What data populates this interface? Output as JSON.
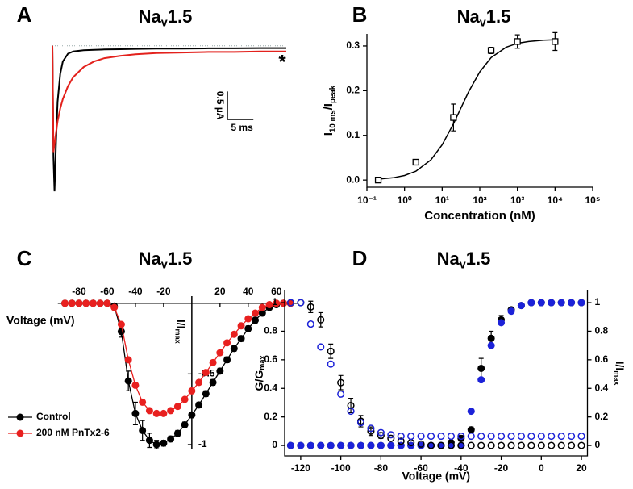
{
  "chart_data": [
    {
      "type": "line",
      "panel_label": "A",
      "title": [
        "Na",
        "v",
        "1.5"
      ],
      "x": [
        0,
        0.2,
        0.4,
        0.7,
        1,
        1.5,
        2,
        3,
        4,
        6,
        8,
        10,
        13,
        16,
        20,
        25,
        30,
        35,
        40,
        45
      ],
      "series": [
        {
          "color": "#000000",
          "values": [
            0,
            -2.0,
            -2.6,
            -1.7,
            -1.0,
            -0.5,
            -0.28,
            -0.14,
            -0.1,
            -0.08,
            -0.07,
            -0.065,
            -0.06,
            -0.055,
            -0.05,
            -0.05,
            -0.045,
            -0.045,
            -0.04,
            -0.04
          ]
        },
        {
          "color": "#e3211c",
          "values": [
            0,
            -1.9,
            -1.75,
            -1.55,
            -1.35,
            -1.12,
            -0.95,
            -0.72,
            -0.56,
            -0.38,
            -0.28,
            -0.22,
            -0.18,
            -0.15,
            -0.13,
            -0.12,
            -0.11,
            -0.11,
            -0.1,
            -0.1
          ]
        }
      ],
      "xlim": [
        0,
        45
      ],
      "ylim": [
        -2.7,
        0.3
      ],
      "scale_bar": {
        "x": {
          "value": 5,
          "label": "5 ms"
        },
        "y": {
          "value": 0.5,
          "label": "0.5 µA"
        }
      },
      "annotation": "*"
    },
    {
      "type": "scatter",
      "panel_label": "B",
      "title": [
        "Na",
        "v",
        "1.5"
      ],
      "y_label": [
        "I",
        "10 ms",
        "/I",
        "peak"
      ],
      "x_label": "Concentration (nM)",
      "x": [
        0.2,
        2,
        20,
        200,
        1000,
        10000
      ],
      "values": [
        0,
        0.04,
        0.14,
        0.29,
        0.31,
        0.31
      ],
      "errors": [
        0.005,
        0.006,
        0.03,
        0.007,
        0.015,
        0.02
      ],
      "color": "#000000",
      "marker": "open-square",
      "fit": {
        "x": [
          0.2,
          0.5,
          1,
          2,
          5,
          10,
          20,
          50,
          100,
          200,
          500,
          1000,
          2000,
          5000,
          10000
        ],
        "values": [
          0.0021,
          0.0052,
          0.0102,
          0.0197,
          0.045,
          0.0788,
          0.126,
          0.197,
          0.242,
          0.274,
          0.297,
          0.306,
          0.31,
          0.313,
          0.314
        ]
      },
      "log_x": true,
      "xlim": [
        0.1,
        100000
      ],
      "xticks": [
        {
          "value": 0.1,
          "label": "10⁻¹"
        },
        {
          "value": 1,
          "label": "10⁰"
        },
        {
          "value": 10,
          "label": "10¹"
        },
        {
          "value": 100,
          "label": "10²"
        },
        {
          "value": 1000,
          "label": "10³"
        },
        {
          "value": 10000,
          "label": "10⁴"
        },
        {
          "value": 100000,
          "label": "10⁵"
        }
      ],
      "ylim": [
        -0.016,
        0.327
      ],
      "yticks": [
        {
          "value": 0,
          "label": "0.0"
        },
        0.1,
        0.2,
        0.3
      ]
    },
    {
      "type": "line",
      "markers": true,
      "panel_label": "C",
      "title": [
        "Na",
        "v",
        "1.5"
      ],
      "x_label": "Voltage (mV)",
      "y_label": [
        "I/I",
        "max"
      ],
      "x": [
        -90,
        -85,
        -80,
        -75,
        -70,
        -65,
        -60,
        -55,
        -50,
        -45,
        -40,
        -35,
        -30,
        -25,
        -20,
        -15,
        -10,
        -5,
        0,
        5,
        10,
        15,
        20,
        25,
        30,
        35,
        40,
        45,
        50,
        55,
        60,
        65,
        70
      ],
      "series": [
        {
          "name": "Control",
          "color": "#000000",
          "values": [
            0,
            0,
            0,
            0,
            0,
            0,
            0,
            -0.02,
            -0.2,
            -0.55,
            -0.78,
            -0.9,
            -0.97,
            -1.0,
            -0.99,
            -0.96,
            -0.92,
            -0.86,
            -0.79,
            -0.72,
            -0.64,
            -0.56,
            -0.48,
            -0.4,
            -0.32,
            -0.25,
            -0.18,
            -0.12,
            -0.07,
            -0.03,
            -0.01,
            0,
            0
          ],
          "errors": [
            0,
            0,
            0,
            0,
            0,
            0,
            0,
            0.01,
            0.04,
            0.07,
            0.08,
            0.07,
            0.05,
            0.03,
            0.02,
            0.02,
            0.02,
            0.02,
            0.02,
            0.02,
            0.02,
            0.02,
            0.02,
            0.02,
            0.02,
            0.02,
            0.02,
            0.02,
            0.01,
            0.01,
            0,
            0,
            0
          ]
        },
        {
          "name": "200 nM PnTx2-6",
          "color": "#e8201f",
          "values": [
            0,
            0,
            0,
            0,
            0,
            0,
            0,
            -0.03,
            -0.15,
            -0.4,
            -0.58,
            -0.7,
            -0.76,
            -0.78,
            -0.78,
            -0.76,
            -0.73,
            -0.68,
            -0.62,
            -0.56,
            -0.49,
            -0.42,
            -0.35,
            -0.28,
            -0.22,
            -0.16,
            -0.11,
            -0.07,
            -0.03,
            -0.01,
            0,
            0,
            0
          ]
        }
      ],
      "xlim": [
        -95,
        75
      ],
      "ylim": [
        -1.1,
        0.05
      ],
      "xticks": [
        -80,
        -60,
        -40,
        -20,
        20,
        40,
        60
      ],
      "yticks": [
        -1,
        -0.5
      ],
      "legend": "lower-left"
    },
    {
      "type": "scatter",
      "panel_label": "D",
      "title": [
        "Na",
        "v",
        "1.5"
      ],
      "x_label": "Voltage (mV)",
      "y_label": [
        "G/G",
        "max"
      ],
      "y2_label": [
        "I/I",
        "max"
      ],
      "x": [
        -125,
        -120,
        -115,
        -110,
        -105,
        -100,
        -95,
        -90,
        -85,
        -80,
        -75,
        -70,
        -65,
        -60,
        -55,
        -50,
        -45,
        -40,
        -35,
        -30,
        -25,
        -20,
        -15,
        -10,
        -5,
        0,
        5,
        10,
        15,
        20
      ],
      "series": [
        {
          "color": "#000000",
          "marker": "filled",
          "values": [
            0,
            0,
            0,
            0,
            0,
            0,
            0,
            0,
            0,
            0,
            0,
            0,
            0,
            0,
            0,
            0,
            0.02,
            0.05,
            0.11,
            0.54,
            0.75,
            0.88,
            0.95,
            0.98,
            1,
            1,
            1,
            1,
            1,
            1
          ],
          "errors": [
            0,
            0,
            0,
            0,
            0,
            0,
            0,
            0,
            0,
            0,
            0,
            0,
            0,
            0,
            0,
            0,
            0,
            0.02,
            0.02,
            0.07,
            0.05,
            0.03,
            0,
            0,
            0,
            0,
            0,
            0,
            0,
            0
          ]
        },
        {
          "color": "#1c22d8",
          "marker": "filled",
          "values": [
            0,
            0,
            0,
            0,
            0,
            0,
            0,
            0,
            0,
            0,
            0,
            0,
            0,
            0,
            0,
            0,
            0,
            0,
            0.24,
            0.46,
            0.7,
            0.86,
            0.94,
            0.98,
            1,
            1,
            1,
            1,
            1,
            1
          ]
        },
        {
          "color": "#000000",
          "marker": "open",
          "axis": "y2",
          "values": [
            1,
            1,
            0.97,
            0.88,
            0.66,
            0.44,
            0.28,
            0.17,
            0.1,
            0.07,
            0.05,
            0.03,
            0.02,
            0.01,
            0,
            0,
            0,
            0,
            0,
            0,
            0,
            0,
            0,
            0,
            0,
            0,
            0,
            0,
            0,
            0
          ],
          "errors": [
            0,
            0,
            0.04,
            0.05,
            0.05,
            0.05,
            0.05,
            0.04,
            0.03,
            0.02,
            0,
            0,
            0,
            0,
            0,
            0,
            0,
            0,
            0,
            0,
            0,
            0,
            0,
            0,
            0,
            0,
            0,
            0,
            0,
            0
          ]
        },
        {
          "color": "#1c22d8",
          "marker": "open",
          "axis": "y2",
          "values": [
            1,
            1,
            0.85,
            0.69,
            0.57,
            0.36,
            0.24,
            0.16,
            0.12,
            0.09,
            0.075,
            0.065,
            0.065,
            0.065,
            0.065,
            0.065,
            0.065,
            0.065,
            0.065,
            0.065,
            0.065,
            0.065,
            0.065,
            0.065,
            0.065,
            0.065,
            0.065,
            0.065,
            0.065,
            0.065
          ]
        }
      ],
      "xlim": [
        -128,
        23
      ],
      "ylim": [
        -0.073,
        1.085
      ],
      "y2lim": [
        -0.073,
        1.085
      ],
      "xticks": [
        -120,
        -100,
        -80,
        -60,
        -40,
        -20,
        0,
        20
      ],
      "yticks": [
        0,
        0.2,
        0.4,
        0.6,
        0.8,
        1
      ],
      "y2ticks": [
        0,
        0.2,
        0.4,
        0.6,
        0.8,
        1
      ]
    }
  ]
}
